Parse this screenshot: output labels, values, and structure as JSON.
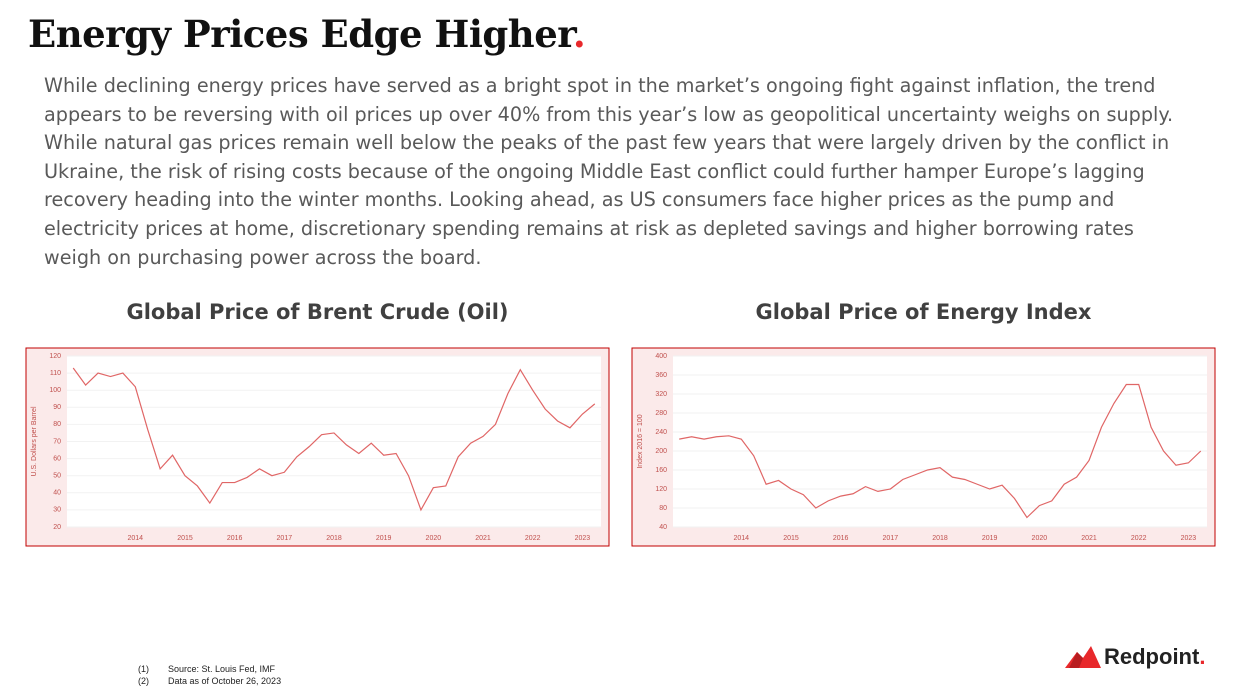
{
  "title": "Energy Prices Edge Higher",
  "title_mark": ".",
  "paragraph": "While declining energy prices have served as a bright spot in the market’s ongoing fight against inflation, the trend appears to be reversing with oil prices up over 40% from this year’s low as geopolitical uncertainty weighs on supply. While natural gas prices remain well below the peaks of the past few years that were largely driven by the conflict in Ukraine, the risk of rising costs because of the ongoing Middle East conflict could further hamper Europe’s lagging recovery heading into the winter months.  Looking ahead, as US consumers face higher prices as the pump and electricity prices at home, discretionary spending remains at risk as depleted savings and higher borrowing rates weigh on purchasing power across the board.",
  "chart_data": [
    {
      "type": "line",
      "title": "Global Price of Brent Crude (Oil)",
      "y_label": "U.S. Dollars per Barrel",
      "color": "#e06666",
      "categories": [
        null,
        null,
        null,
        null,
        null,
        "2014",
        null,
        null,
        null,
        "2015",
        null,
        null,
        null,
        "2016",
        null,
        null,
        null,
        "2017",
        null,
        null,
        null,
        "2018",
        null,
        null,
        null,
        "2019",
        null,
        null,
        null,
        "2020",
        null,
        null,
        null,
        "2021",
        null,
        null,
        null,
        "2022",
        null,
        null,
        null,
        "2023",
        null
      ],
      "values": [
        113,
        103,
        110,
        108,
        110,
        102,
        77,
        54,
        62,
        50,
        44,
        34,
        46,
        46,
        49,
        54,
        50,
        52,
        61,
        67,
        74,
        75,
        68,
        63,
        69,
        62,
        63,
        50,
        30,
        43,
        44,
        61,
        69,
        73,
        80,
        98,
        112,
        100,
        89,
        82,
        78,
        86,
        92
      ],
      "ylim": [
        20,
        120
      ],
      "yticks": [
        20,
        30,
        40,
        50,
        60,
        70,
        80,
        90,
        100,
        110,
        120
      ],
      "grid": true
    },
    {
      "type": "line",
      "title": "Global Price of Energy Index",
      "y_label": "Index 2016 = 100",
      "color": "#e06666",
      "categories": [
        null,
        null,
        null,
        null,
        null,
        "2014",
        null,
        null,
        null,
        "2015",
        null,
        null,
        null,
        "2016",
        null,
        null,
        null,
        "2017",
        null,
        null,
        null,
        "2018",
        null,
        null,
        null,
        "2019",
        null,
        null,
        null,
        "2020",
        null,
        null,
        null,
        "2021",
        null,
        null,
        null,
        "2022",
        null,
        null,
        null,
        "2023",
        null
      ],
      "values": [
        225,
        230,
        225,
        230,
        232,
        225,
        190,
        130,
        138,
        120,
        108,
        80,
        95,
        105,
        110,
        125,
        115,
        120,
        140,
        150,
        160,
        165,
        145,
        140,
        130,
        120,
        128,
        100,
        60,
        85,
        95,
        130,
        145,
        180,
        250,
        300,
        340,
        340,
        250,
        200,
        170,
        175,
        200
      ],
      "ylim": [
        40,
        400
      ],
      "yticks": [
        40,
        80,
        120,
        160,
        200,
        240,
        280,
        320,
        360,
        400
      ],
      "grid": true
    }
  ],
  "footnotes": [
    [
      "(1)",
      "Source: St. Louis Fed, IMF"
    ],
    [
      "(2)",
      "Data as of October 26, 2023"
    ]
  ],
  "logo": {
    "name": "Redpoint",
    "mark": "."
  }
}
